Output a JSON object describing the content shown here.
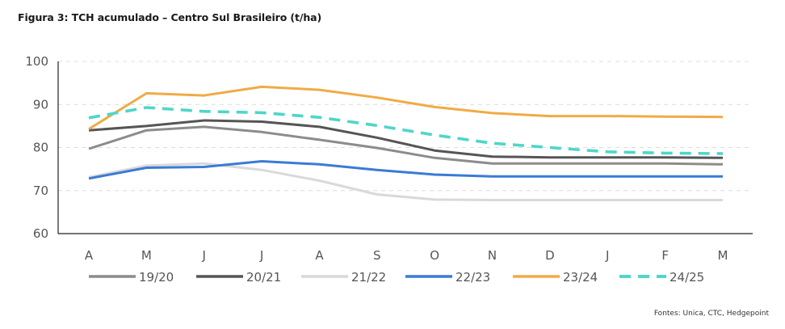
{
  "title": "Figura 3: TCH acumulado – Centro Sul Brasileiro (t/ha)",
  "source": "Fontes: Unica, CTC, Hedgepoint",
  "chart_data": {
    "type": "line",
    "title": "Figura 3: TCH acumulado – Centro Sul Brasileiro (t/ha)",
    "xlabel": "",
    "ylabel": "",
    "categories": [
      "A",
      "M",
      "J",
      "J",
      "A",
      "S",
      "O",
      "N",
      "D",
      "J",
      "F",
      "M"
    ],
    "yticks": [
      60,
      70,
      80,
      90,
      100
    ],
    "ylim": [
      60,
      100
    ],
    "grid": "horizontal-dashed",
    "legend": "bottom",
    "series": [
      {
        "name": "19/20",
        "color": "#8c8c8c",
        "dash": false,
        "values": [
          79.7,
          84.0,
          84.8,
          83.6,
          81.8,
          79.9,
          77.6,
          76.3,
          76.3,
          76.3,
          76.3,
          76.1
        ]
      },
      {
        "name": "20/21",
        "color": "#555555",
        "dash": false,
        "values": [
          84.0,
          85.0,
          86.3,
          86.0,
          84.8,
          82.3,
          79.3,
          77.9,
          77.7,
          77.7,
          77.7,
          77.6
        ]
      },
      {
        "name": "21/22",
        "color": "#d9d9d9",
        "dash": false,
        "values": [
          73.1,
          75.8,
          76.3,
          74.8,
          72.3,
          69.1,
          67.9,
          67.8,
          67.8,
          67.8,
          67.8,
          67.8
        ]
      },
      {
        "name": "22/23",
        "color": "#3a7bd5",
        "dash": false,
        "values": [
          72.8,
          75.3,
          75.5,
          76.8,
          76.1,
          74.8,
          73.7,
          73.3,
          73.3,
          73.3,
          73.3,
          73.3
        ]
      },
      {
        "name": "23/24",
        "color": "#f0ab45",
        "dash": false,
        "values": [
          84.3,
          92.6,
          92.1,
          94.1,
          93.4,
          91.6,
          89.4,
          88.0,
          87.3,
          87.3,
          87.2,
          87.1
        ]
      },
      {
        "name": "24/25",
        "color": "#4fd6c9",
        "dash": true,
        "values": [
          86.9,
          89.3,
          88.4,
          88.1,
          87.0,
          85.1,
          82.9,
          81.0,
          80.0,
          79.0,
          78.7,
          78.6
        ]
      }
    ]
  }
}
